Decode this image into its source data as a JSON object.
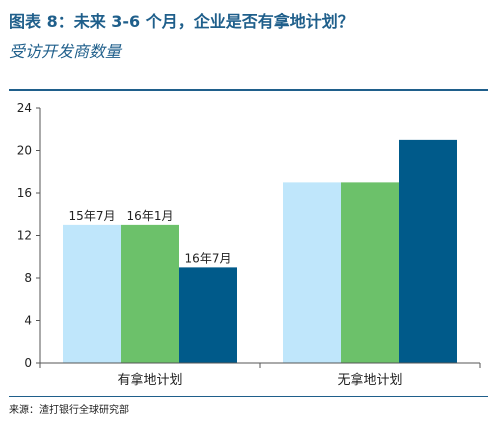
{
  "title": "图表 8：未来 3-6 个月，企业是否有拿地计划？",
  "subtitle": "受访开发商数量",
  "source": "来源：渣打银行全球研究部",
  "chart_data": {
    "type": "bar",
    "categories": [
      "有拿地计划",
      "无拿地计划"
    ],
    "series": [
      {
        "name": "15年7月",
        "values": [
          13,
          17
        ],
        "color": "#bfe6fb"
      },
      {
        "name": "16年1月",
        "values": [
          13,
          17
        ],
        "color": "#6cc16a"
      },
      {
        "name": "16年7月",
        "values": [
          9,
          21
        ],
        "color": "#005a8a"
      }
    ],
    "ylim": [
      0,
      24
    ],
    "yticks": [
      0,
      4,
      8,
      12,
      16,
      20,
      24
    ],
    "grid": false,
    "legend": "series names labeled above bars in first group"
  }
}
